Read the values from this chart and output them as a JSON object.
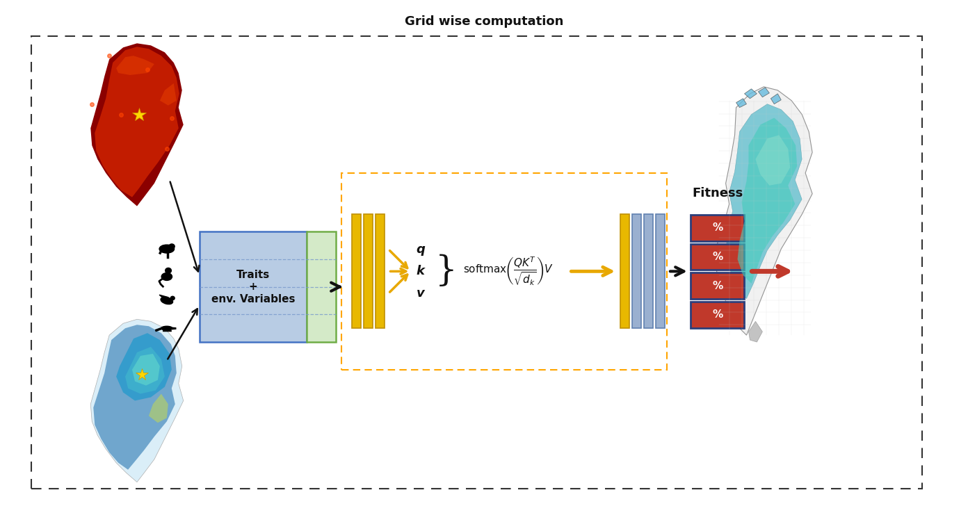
{
  "title": "Grid wise computation",
  "bg": "#ffffff",
  "outer_dash_color": "#333333",
  "attn_box_color": "#FFA500",
  "trait_fill": "#b8cce4",
  "trait_edge": "#4472c4",
  "env_fill": "#d4eac8",
  "env_edge": "#70ad47",
  "fitness_fill": "#c0392b",
  "fitness_edge": "#2c3e7a",
  "gold_bar": "#E8B800",
  "gold_bar_edge": "#c09000",
  "blue_bar": "#9ab0d0",
  "blue_bar_edge": "#6080b0",
  "black": "#111111",
  "orange_arrow": "#E8A800",
  "red_arrow": "#c0392b",
  "title_fs": 13,
  "label_fs": 11,
  "small_fs": 9,
  "pct_fs": 11,
  "fitness_label": "Fitness",
  "trait_label_lines": [
    "Traits",
    "+",
    "env. Variables"
  ],
  "qkv": [
    "q",
    "k",
    "v"
  ],
  "pct": "%",
  "fig_w": 13.92,
  "fig_h": 7.38
}
